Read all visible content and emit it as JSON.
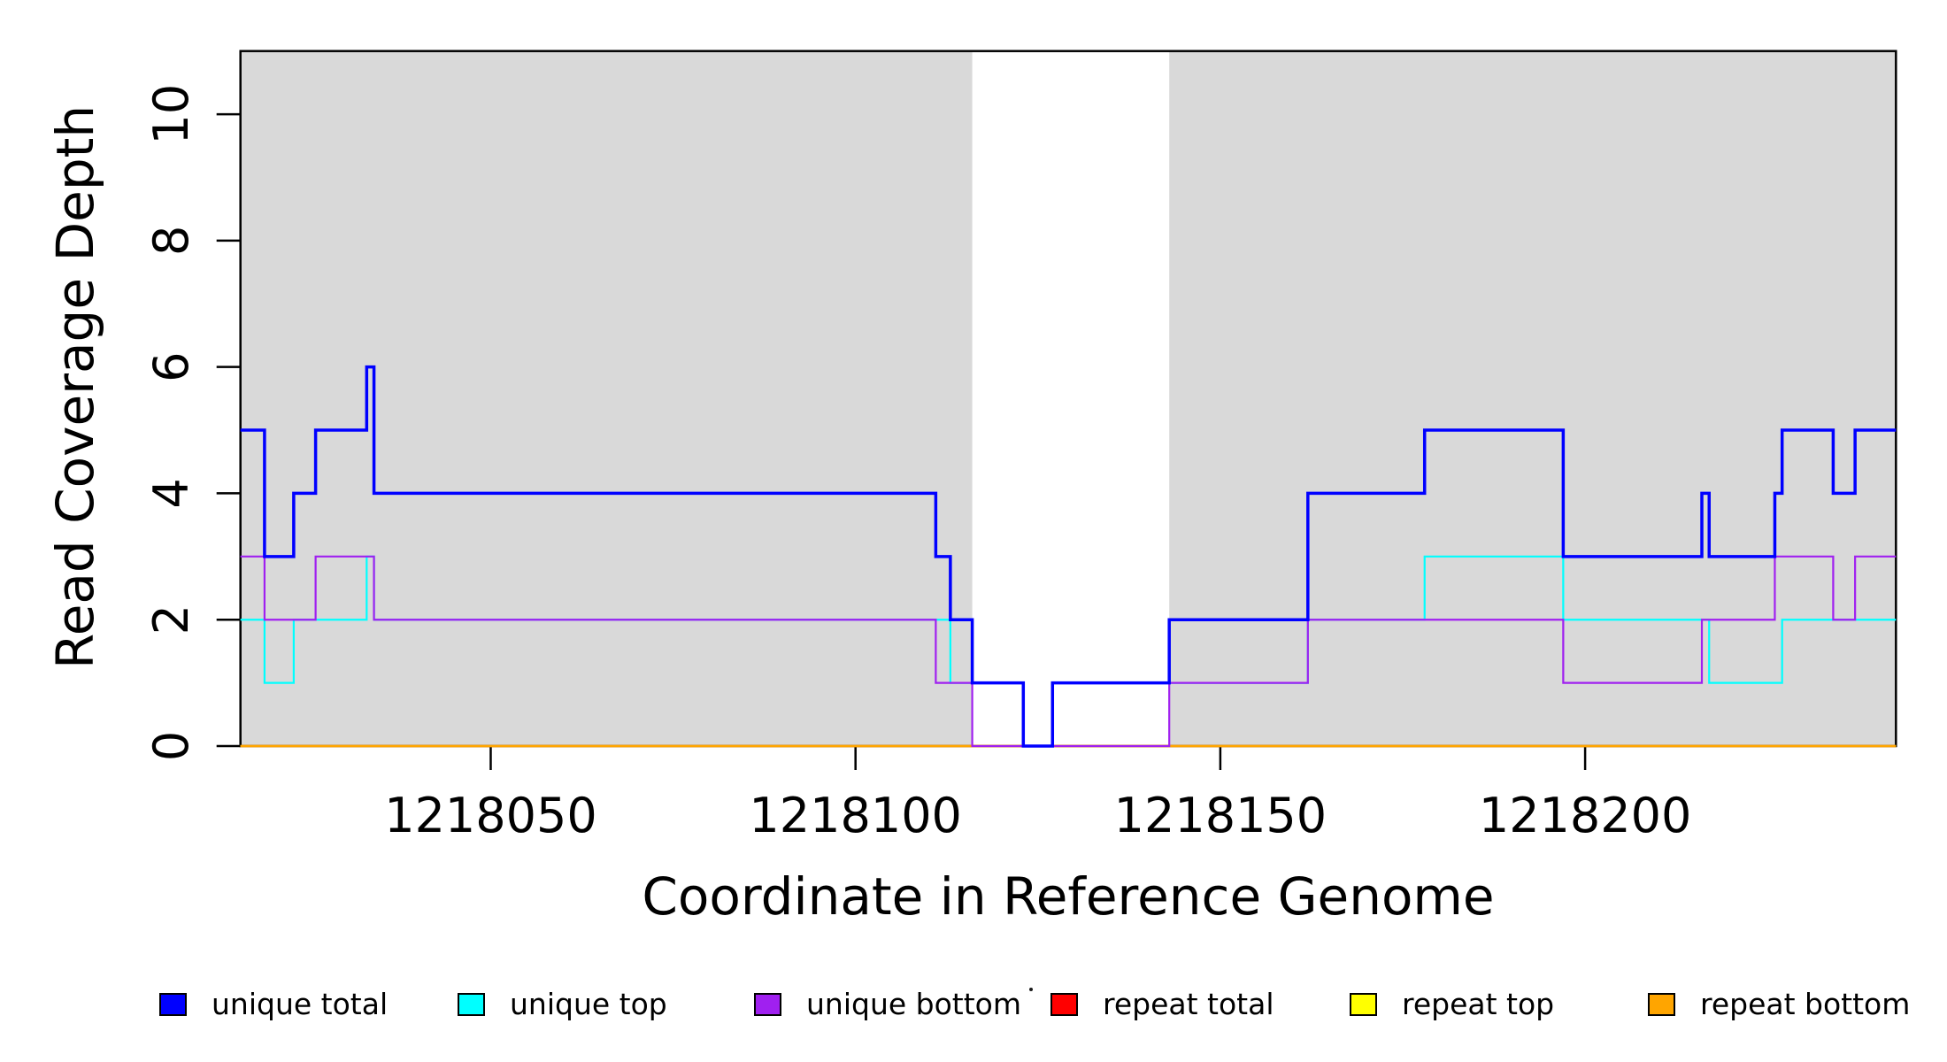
{
  "chart_data": {
    "type": "line",
    "subtype": "step-coverage",
    "title": "",
    "xlabel": "Coordinate in Reference Genome",
    "ylabel": "Read Coverage Depth",
    "xlim": [
      1218015.7,
      1218242.6
    ],
    "ylim": [
      0,
      11
    ],
    "xticks": [
      1218050,
      1218100,
      1218150,
      1218200
    ],
    "yticks": [
      0,
      2,
      4,
      6,
      8,
      10
    ],
    "grid": false,
    "legend_position": "bottom",
    "plot_border_color": "#000000",
    "shaded_regions": [
      {
        "name": "unique-region-left",
        "x0": 1218015.7,
        "x1": 1218116,
        "color": "#D9D9D9"
      },
      {
        "name": "unique-region-right",
        "x0": 1218143,
        "x1": 1218242.6,
        "color": "#D9D9D9"
      }
    ],
    "series": [
      {
        "name": "unique total",
        "color": "#0000FF",
        "line_width": 3.5,
        "steps": [
          [
            1218015.7,
            5
          ],
          [
            1218019,
            3
          ],
          [
            1218023,
            4
          ],
          [
            1218026,
            5
          ],
          [
            1218033,
            6
          ],
          [
            1218034,
            4
          ],
          [
            1218111,
            3
          ],
          [
            1218113,
            2
          ],
          [
            1218116,
            1
          ],
          [
            1218123,
            0
          ],
          [
            1218127,
            1
          ],
          [
            1218143,
            2
          ],
          [
            1218162,
            4
          ],
          [
            1218178,
            5
          ],
          [
            1218197,
            3
          ],
          [
            1218216,
            4
          ],
          [
            1218217,
            3
          ],
          [
            1218226,
            4
          ],
          [
            1218227,
            5
          ],
          [
            1218234,
            4
          ],
          [
            1218237,
            5
          ],
          [
            1218242.6,
            5
          ]
        ]
      },
      {
        "name": "unique top",
        "color": "#00FFFF",
        "line_width": 2.2,
        "steps": [
          [
            1218015.7,
            2
          ],
          [
            1218019,
            1
          ],
          [
            1218023,
            2
          ],
          [
            1218033,
            3
          ],
          [
            1218034,
            2
          ],
          [
            1218113,
            1
          ],
          [
            1218123,
            0
          ],
          [
            1218127,
            1
          ],
          [
            1218162,
            2
          ],
          [
            1218178,
            3
          ],
          [
            1218197,
            2
          ],
          [
            1218217,
            1
          ],
          [
            1218227,
            2
          ],
          [
            1218242.6,
            2
          ]
        ]
      },
      {
        "name": "unique bottom",
        "color": "#A020F0",
        "line_width": 2.2,
        "steps": [
          [
            1218015.7,
            3
          ],
          [
            1218019,
            2
          ],
          [
            1218026,
            3
          ],
          [
            1218034,
            2
          ],
          [
            1218111,
            1
          ],
          [
            1218116,
            0
          ],
          [
            1218143,
            1
          ],
          [
            1218162,
            2
          ],
          [
            1218197,
            1
          ],
          [
            1218216,
            2
          ],
          [
            1218226,
            3
          ],
          [
            1218234,
            2
          ],
          [
            1218237,
            3
          ],
          [
            1218242.6,
            3
          ]
        ]
      },
      {
        "name": "repeat total",
        "color": "#FF0000",
        "line_width": 2.2,
        "steps": [
          [
            1218015.7,
            0
          ],
          [
            1218242.6,
            0
          ]
        ]
      },
      {
        "name": "repeat top",
        "color": "#FFFF00",
        "line_width": 2.2,
        "steps": [
          [
            1218015.7,
            0
          ],
          [
            1218242.6,
            0
          ]
        ]
      },
      {
        "name": "repeat bottom",
        "color": "#FFA500",
        "line_width": 2.5,
        "steps": [
          [
            1218015.7,
            0
          ],
          [
            1218242.6,
            0
          ]
        ]
      }
    ],
    "legend": [
      {
        "label": "unique total",
        "color": "#0000FF"
      },
      {
        "label": "unique top",
        "color": "#00FFFF"
      },
      {
        "label": "unique bottom",
        "color": "#A020F0"
      },
      {
        "label": "repeat total",
        "color": "#FF0000"
      },
      {
        "label": "repeat top",
        "color": "#FFFF00"
      },
      {
        "label": "repeat bottom",
        "color": "#FFA500"
      }
    ]
  }
}
